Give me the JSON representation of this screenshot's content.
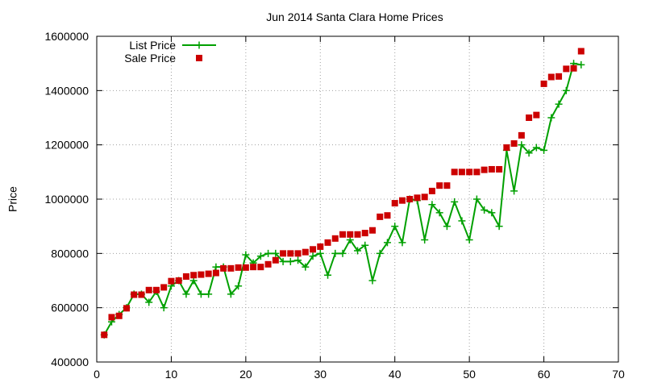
{
  "chart_data": {
    "type": "line",
    "title": "Jun 2014 Santa Clara Home Prices",
    "xlabel": "",
    "ylabel": "Price",
    "xlim": [
      0,
      70
    ],
    "ylim": [
      400000,
      1600000
    ],
    "xticks": [
      0,
      10,
      20,
      30,
      40,
      50,
      60,
      70
    ],
    "yticks": [
      400000,
      600000,
      800000,
      1000000,
      1200000,
      1400000,
      1600000
    ],
    "grid": true,
    "legend_position": "top-left",
    "series": [
      {
        "name": "List Price",
        "style": "line-plus",
        "color": "#00a000",
        "x": [
          1,
          2,
          3,
          4,
          5,
          6,
          7,
          8,
          9,
          10,
          11,
          12,
          13,
          14,
          15,
          16,
          17,
          18,
          19,
          20,
          21,
          22,
          23,
          24,
          25,
          26,
          27,
          28,
          29,
          30,
          31,
          32,
          33,
          34,
          35,
          36,
          37,
          38,
          39,
          40,
          41,
          42,
          43,
          44,
          45,
          46,
          47,
          48,
          49,
          50,
          51,
          52,
          53,
          54,
          55,
          56,
          57,
          58,
          59,
          60,
          61,
          62,
          63,
          64,
          65
        ],
        "values": [
          500000,
          548000,
          575000,
          600000,
          650000,
          650000,
          620000,
          660000,
          600000,
          680000,
          700000,
          650000,
          700000,
          650000,
          650000,
          750000,
          750000,
          650000,
          680000,
          795000,
          765000,
          790000,
          800000,
          800000,
          770000,
          770000,
          775000,
          750000,
          790000,
          800000,
          720000,
          800000,
          800000,
          850000,
          810000,
          830000,
          700000,
          800000,
          840000,
          900000,
          840000,
          1000000,
          995000,
          850000,
          980000,
          950000,
          900000,
          990000,
          920000,
          850000,
          1000000,
          960000,
          950000,
          900000,
          1180000,
          1030000,
          1200000,
          1170000,
          1190000,
          1180000,
          1300000,
          1350000,
          1400000,
          1500000,
          1495000
        ]
      },
      {
        "name": "Sale Price",
        "style": "square",
        "color": "#cc0000",
        "x": [
          1,
          2,
          3,
          4,
          5,
          6,
          7,
          8,
          9,
          10,
          11,
          12,
          13,
          14,
          15,
          16,
          17,
          18,
          19,
          20,
          21,
          22,
          23,
          24,
          25,
          26,
          27,
          28,
          29,
          30,
          31,
          32,
          33,
          34,
          35,
          36,
          37,
          38,
          39,
          40,
          41,
          42,
          43,
          44,
          45,
          46,
          47,
          48,
          49,
          50,
          51,
          52,
          53,
          54,
          55,
          56,
          57,
          58,
          59,
          60,
          61,
          62,
          63,
          64,
          65
        ],
        "values": [
          500000,
          565000,
          570000,
          598000,
          648000,
          648000,
          665000,
          665000,
          675000,
          698000,
          700000,
          715000,
          720000,
          722000,
          725000,
          728000,
          745000,
          745000,
          748000,
          748000,
          750000,
          750000,
          760000,
          775000,
          800000,
          800000,
          800000,
          805000,
          815000,
          825000,
          840000,
          855000,
          870000,
          870000,
          870000,
          875000,
          885000,
          935000,
          940000,
          985000,
          995000,
          1000000,
          1005000,
          1008000,
          1030000,
          1050000,
          1050000,
          1100000,
          1100000,
          1100000,
          1100000,
          1108000,
          1110000,
          1110000,
          1190000,
          1205000,
          1235000,
          1300000,
          1310000,
          1425000,
          1450000,
          1452000,
          1480000,
          1482000,
          1545000
        ]
      }
    ]
  }
}
